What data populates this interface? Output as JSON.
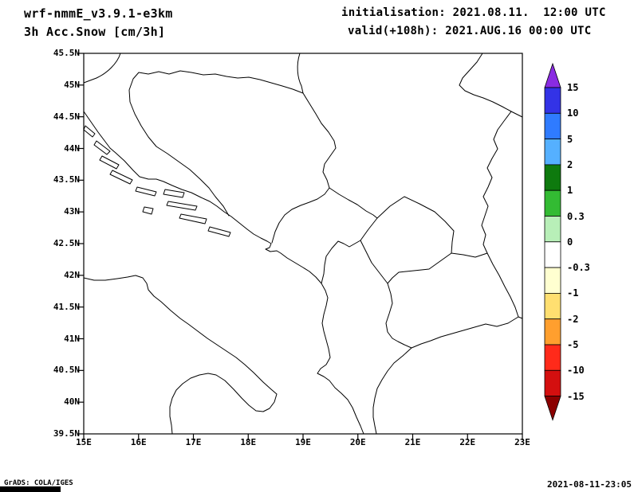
{
  "header": {
    "model_line": "wrf-nmmE_v3.9.1-e3km",
    "variable_line": "3h Acc.Snow [cm/3h]",
    "init_line": "initialisation: 2021.08.11.  12:00 UTC",
    "valid_line": "valid(+108h): 2021.AUG.16 00:00 UTC"
  },
  "map": {
    "y_axis_labels": [
      "45.5N",
      "45N",
      "44.5N",
      "44N",
      "43.5N",
      "43N",
      "42.5N",
      "42N",
      "41.5N",
      "41N",
      "40.5N",
      "40N",
      "39.5N"
    ],
    "x_axis_labels": [
      "15E",
      "16E",
      "17E",
      "18E",
      "19E",
      "20E",
      "21E",
      "22E",
      "23E"
    ]
  },
  "colorbar": {
    "labels": [
      "15",
      "10",
      "5",
      "2",
      "1",
      "0.3",
      "0",
      "-0.3",
      "-1",
      "-2",
      "-5",
      "-10",
      "-15"
    ],
    "top_arrow_color": "#8a2be2",
    "bottom_arrow_color": "#8b0000",
    "segment_colors": [
      "#3333e6",
      "#2f7bff",
      "#55b0ff",
      "#0e7a0e",
      "#33bb33",
      "#b8efb8",
      "#ffffff",
      "#ffffd0",
      "#ffdf70",
      "#ff9f2e",
      "#ff2a1a",
      "#d40f0f"
    ]
  },
  "footer": {
    "grads_credit": "GrADS: COLA/IGES",
    "timestamp": "2021-08-11-23:05"
  },
  "chart_data": {
    "type": "map",
    "title": "3h Acc.Snow [cm/3h]",
    "model": "wrf-nmmE_v3.9.1-e3km",
    "initialisation": "2021.08.11. 12:00 UTC",
    "valid": "(+108h) 2021.AUG.16 00:00 UTC",
    "lon_range_deg_e": [
      15,
      23
    ],
    "lat_range_deg_n": [
      39.5,
      45.5
    ],
    "colorbar_levels": [
      15,
      10,
      5,
      2,
      1,
      0.3,
      0,
      -0.3,
      -1,
      -2,
      -5,
      -10,
      -15
    ],
    "field_shading": "none visible (map area unshaded)",
    "region": "Adriatic / Balkans coastline and country borders drawn in black outline"
  }
}
